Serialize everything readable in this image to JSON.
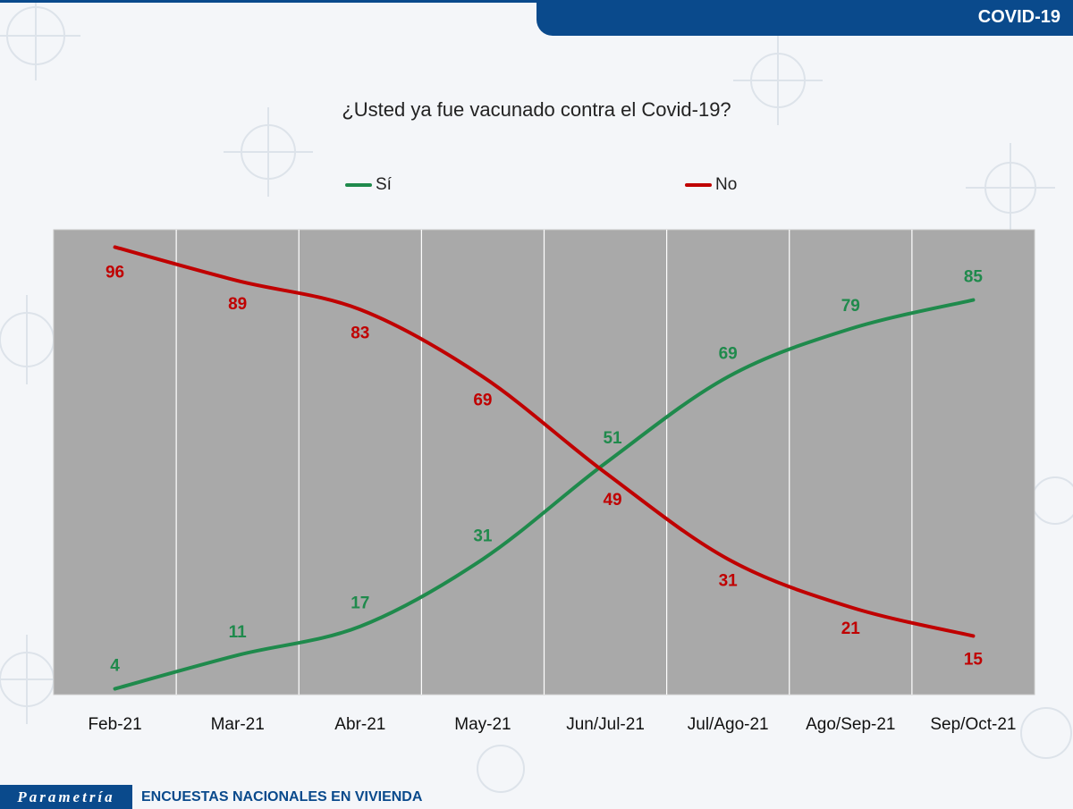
{
  "header": {
    "topic_label": "COVID-19"
  },
  "footer": {
    "logo_text": "Parametría",
    "survey_label": "ENCUESTAS NACIONALES EN VIVIENDA"
  },
  "colors": {
    "brand": "#0a4a8c",
    "plot_bg": "#a9a9a9",
    "si": "#1f8a4c",
    "no": "#c00000"
  },
  "chart_data": {
    "type": "line",
    "title": "¿Usted ya fue vacunado contra el Covid-19?",
    "categories": [
      "Feb-21",
      "Mar-21",
      "Abr-21",
      "May-21",
      "Jun/Jul-21",
      "Jul/Ago-21",
      "Ago/Sep-21",
      "Sep/Oct-21"
    ],
    "series": [
      {
        "name": "Sí",
        "color": "#1f8a4c",
        "values": [
          4,
          11,
          17,
          31,
          51,
          69,
          79,
          85
        ]
      },
      {
        "name": "No",
        "color": "#c00000",
        "values": [
          96,
          89,
          83,
          69,
          49,
          31,
          21,
          15
        ]
      }
    ],
    "ylim": [
      0,
      100
    ],
    "grid": "vertical",
    "legend": "top"
  }
}
